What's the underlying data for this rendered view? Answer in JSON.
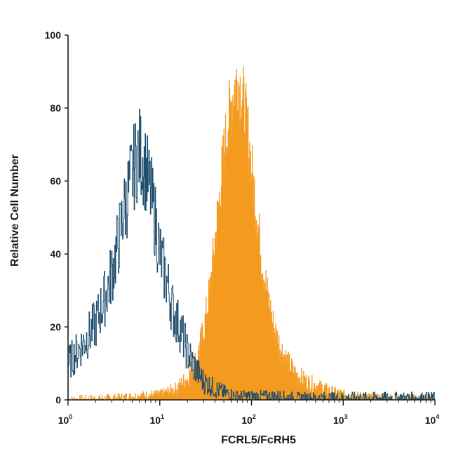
{
  "chart_data": {
    "type": "area",
    "xlabel": "FCRL5/FcRH5",
    "ylabel": "Relative Cell Number",
    "x_scale": "log",
    "xlim": [
      1,
      10000
    ],
    "ylim": [
      0,
      100
    ],
    "x_ticks": [
      {
        "value": 1,
        "base": "10",
        "exp": "0"
      },
      {
        "value": 10,
        "base": "10",
        "exp": "1"
      },
      {
        "value": 100,
        "base": "10",
        "exp": "2"
      },
      {
        "value": 1000,
        "base": "10",
        "exp": "3"
      },
      {
        "value": 10000,
        "base": "10",
        "exp": "4"
      }
    ],
    "y_ticks": [
      0,
      20,
      40,
      60,
      80,
      100
    ],
    "grid": false,
    "legend": "none",
    "series": [
      {
        "style": "outline",
        "color": "#1f4e6e",
        "x": [
          1,
          1.5,
          2,
          2.5,
          3,
          3.5,
          4,
          4.5,
          5,
          5.5,
          6,
          6.5,
          7,
          8,
          9,
          10,
          12,
          14,
          17,
          20,
          25,
          30,
          40,
          50,
          70,
          100,
          150,
          200,
          300,
          500,
          1000,
          2000,
          5000,
          10000
        ],
        "y": [
          10,
          16,
          21,
          28,
          35,
          43,
          51,
          57,
          62,
          66,
          68,
          66,
          63,
          56,
          48,
          40,
          32,
          24,
          19,
          13,
          8,
          5,
          3,
          2,
          1,
          1,
          1,
          1,
          0.5,
          0.5,
          0.5,
          0.5,
          0.5,
          0.5
        ]
      },
      {
        "style": "filled",
        "color": "#f39a1f",
        "x": [
          1,
          3,
          5,
          10,
          15,
          20,
          25,
          30,
          35,
          40,
          45,
          50,
          55,
          60,
          65,
          70,
          75,
          80,
          90,
          100,
          115,
          130,
          150,
          170,
          200,
          250,
          300,
          400,
          500,
          700,
          1000,
          2000,
          5000,
          10000
        ],
        "y": [
          0,
          0.5,
          1,
          1.5,
          3,
          6,
          11,
          19,
          30,
          44,
          57,
          68,
          76,
          82,
          86,
          88,
          86,
          83,
          74,
          63,
          50,
          38,
          28,
          21,
          15,
          10,
          7,
          5,
          4,
          2.5,
          1.5,
          0.8,
          0.3,
          0
        ]
      }
    ]
  }
}
